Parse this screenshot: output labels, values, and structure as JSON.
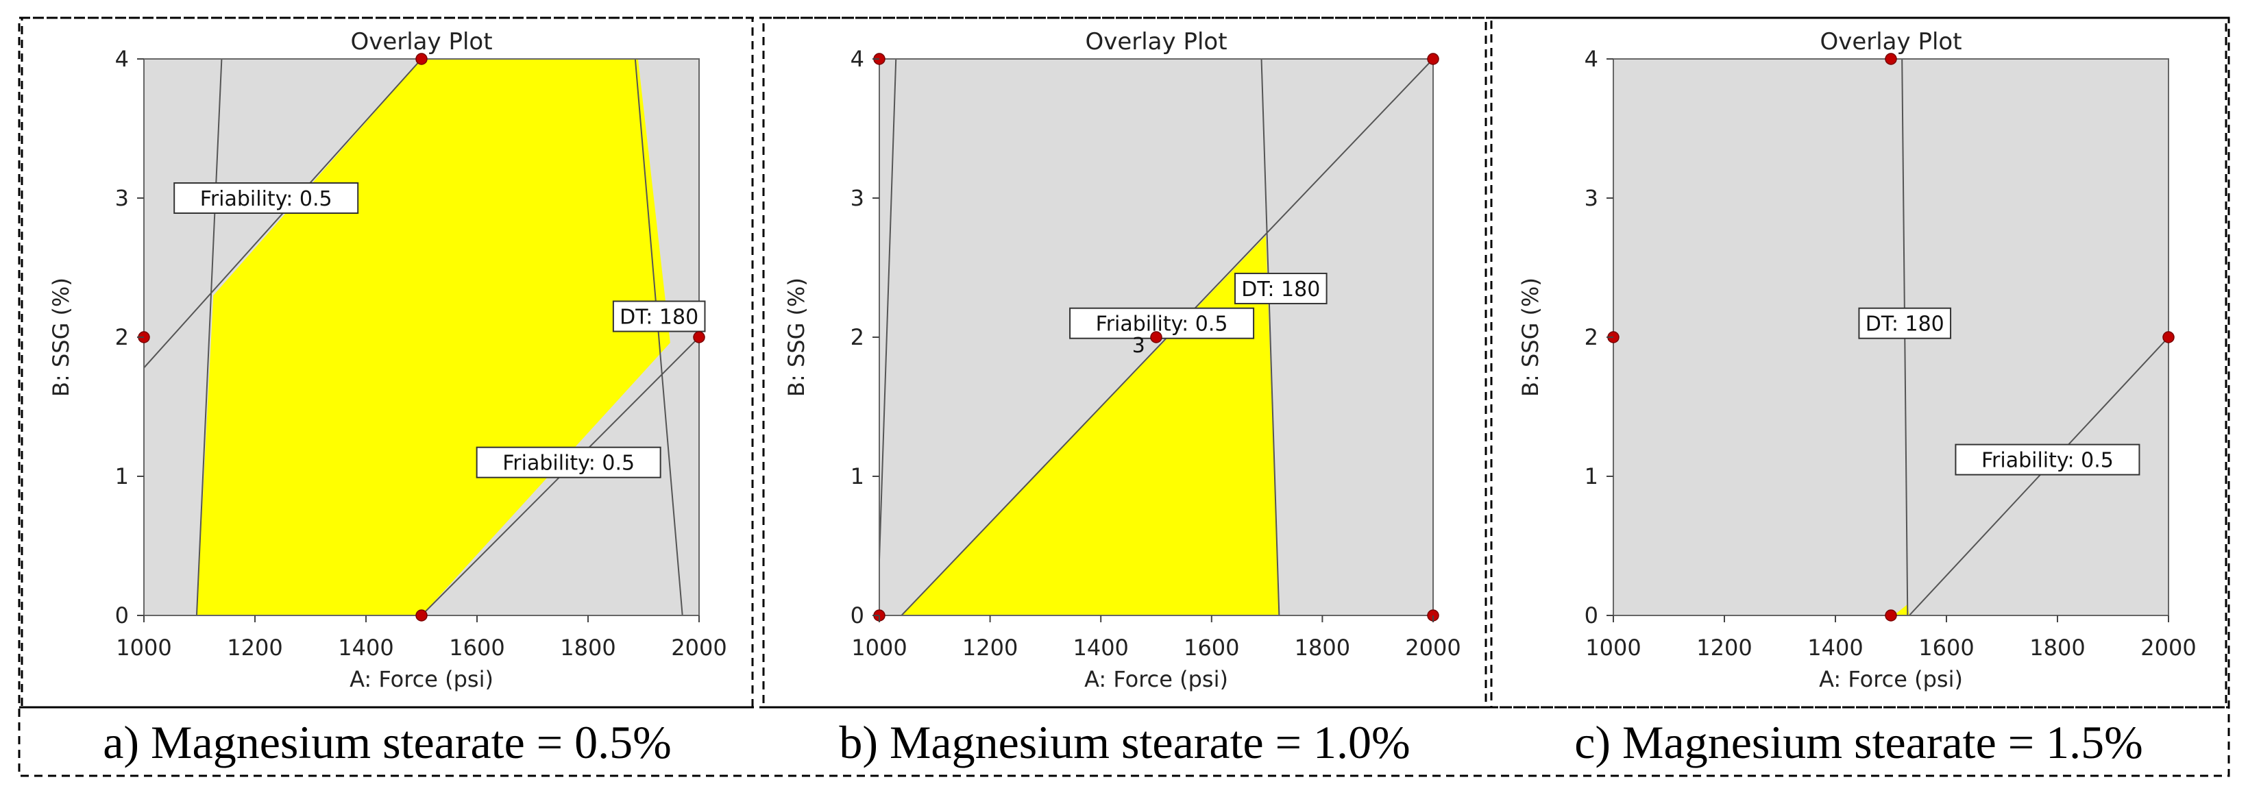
{
  "chart_data": [
    {
      "type": "contour-overlay",
      "title": "Overlay Plot",
      "xlabel": "A: Force (psi)",
      "ylabel": "B: SSG (%)",
      "xlim": [
        1000,
        2000
      ],
      "ylim": [
        0,
        4
      ],
      "xticks": [
        "1000",
        "1200",
        "1400",
        "1600",
        "1800",
        "2000"
      ],
      "yticks": [
        "0",
        "1",
        "2",
        "3",
        "4"
      ],
      "caption": "a) Magnesium stearate = 0.5%",
      "colors": {
        "region": "#ffff00",
        "background": "#dcdcdc",
        "points": "#c00000"
      },
      "feasible_region": [
        [
          1095,
          0
        ],
        [
          1500,
          0
        ],
        [
          1948,
          1.96
        ],
        [
          1890,
          4
        ],
        [
          1500,
          4
        ],
        [
          1125,
          2.3
        ]
      ],
      "contours": [
        {
          "label": "Friability: 0.5",
          "points": [
            [
              1000,
              1.78
            ],
            [
              1500,
              4
            ]
          ],
          "label_at": [
            1220,
            3.0
          ]
        },
        {
          "label": "Friability: 0.5",
          "points": [
            [
              1500,
              0
            ],
            [
              2000,
              2
            ]
          ],
          "label_at": [
            1765,
            1.1
          ]
        },
        {
          "label": "DT: 180",
          "points": [
            [
              1885,
              4
            ],
            [
              1970,
              0
            ]
          ],
          "label_at": [
            1928,
            2.15
          ]
        },
        {
          "label": "",
          "points": [
            [
              1095,
              0
            ],
            [
              1140,
              4
            ]
          ]
        }
      ],
      "design_points": [
        [
          1000,
          2
        ],
        [
          1500,
          4
        ],
        [
          2000,
          2
        ],
        [
          1500,
          0
        ]
      ],
      "point_labels": []
    },
    {
      "type": "contour-overlay",
      "title": "Overlay Plot",
      "xlabel": "A: Force (psi)",
      "ylabel": "B: SSG (%)",
      "xlim": [
        1000,
        2000
      ],
      "ylim": [
        0,
        4
      ],
      "xticks": [
        "1000",
        "1200",
        "1400",
        "1600",
        "1800",
        "2000"
      ],
      "yticks": [
        "0",
        "1",
        "2",
        "3",
        "4"
      ],
      "caption": "b) Magnesium stearate = 1.0%",
      "colors": {
        "region": "#ffff00",
        "background": "#dcdcdc",
        "points": "#c00000"
      },
      "feasible_region": [
        [
          1040,
          0
        ],
        [
          1722,
          0
        ],
        [
          1698,
          2.73
        ]
      ],
      "contours": [
        {
          "label": "Friability: 0.5",
          "points": [
            [
              1040,
              0
            ],
            [
              2000,
              4
            ]
          ],
          "label_at": [
            1510,
            2.1
          ]
        },
        {
          "label": "DT: 180",
          "points": [
            [
              1690,
              4
            ],
            [
              1722,
              0
            ]
          ],
          "label_at": [
            1725,
            2.35
          ]
        },
        {
          "label": "",
          "points": [
            [
              1000,
              0.4
            ],
            [
              1030,
              4
            ]
          ]
        }
      ],
      "design_points": [
        [
          1000,
          4
        ],
        [
          2000,
          4
        ],
        [
          1500,
          2
        ],
        [
          1000,
          0
        ],
        [
          2000,
          0
        ]
      ],
      "point_labels": [
        {
          "text": "3",
          "at": [
            1480,
            1.95
          ]
        }
      ]
    },
    {
      "type": "contour-overlay",
      "title": "Overlay Plot",
      "xlabel": "A: Force (psi)",
      "ylabel": "B: SSG (%)",
      "xlim": [
        1000,
        2000
      ],
      "ylim": [
        0,
        4
      ],
      "xticks": [
        "1000",
        "1200",
        "1400",
        "1600",
        "1800",
        "2000"
      ],
      "yticks": [
        "0",
        "1",
        "2",
        "3",
        "4"
      ],
      "caption": "c) Magnesium stearate = 1.5%",
      "colors": {
        "region": "#ffff00",
        "background": "#dcdcdc",
        "points": "#c00000"
      },
      "feasible_region": [
        [
          1505,
          0
        ],
        [
          1533,
          0
        ],
        [
          1530,
          0.08
        ]
      ],
      "contours": [
        {
          "label": "DT: 180",
          "points": [
            [
              1520,
              4
            ],
            [
              1530,
              0
            ]
          ],
          "label_at": [
            1525,
            2.1
          ]
        },
        {
          "label": "Friability: 0.5",
          "points": [
            [
              1533,
              0
            ],
            [
              2000,
              2
            ]
          ],
          "label_at": [
            1782,
            1.12
          ]
        }
      ],
      "design_points": [
        [
          1500,
          4
        ],
        [
          1000,
          2
        ],
        [
          2000,
          2
        ],
        [
          1500,
          0
        ]
      ],
      "point_labels": []
    }
  ]
}
